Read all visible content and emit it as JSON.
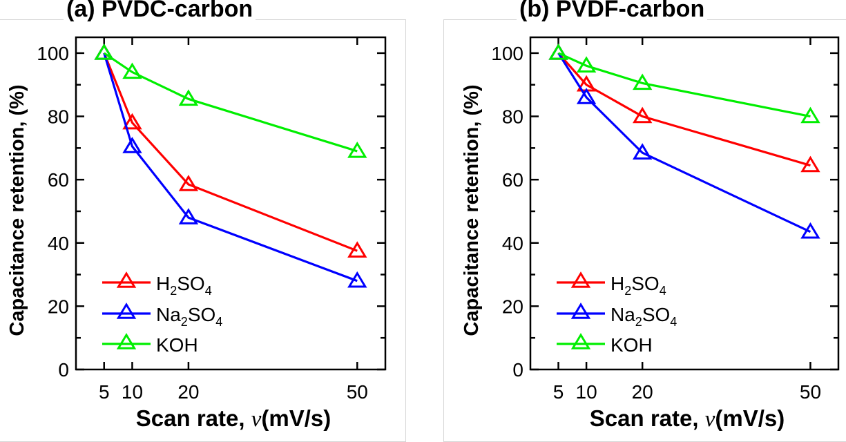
{
  "chart_data": [
    {
      "type": "line",
      "title": "(a) PVDC-carbon",
      "xlabel": "Scan rate, ν (mV/s)",
      "ylabel": "Capacitance retention, (%)",
      "x": [
        5,
        10,
        20,
        50
      ],
      "xticks": [
        5,
        10,
        20,
        50
      ],
      "yticks": [
        0,
        20,
        40,
        60,
        80,
        100
      ],
      "xlim": [
        0,
        55
      ],
      "ylim": [
        0,
        105
      ],
      "grid": false,
      "legend_position": "bottom-left",
      "marker": "open-triangle",
      "series": [
        {
          "name": "H2SO4",
          "label_main": "H",
          "label_sub": "2",
          "label_rest": "SO",
          "label_sub2": "4",
          "color": "#ff0000",
          "values": [
            100,
            78,
            58.5,
            37.5
          ]
        },
        {
          "name": "Na2SO4",
          "label_main": "Na",
          "label_sub": "2",
          "label_rest": "SO",
          "label_sub2": "4",
          "color": "#0000ff",
          "values": [
            100,
            70.5,
            48,
            28
          ]
        },
        {
          "name": "KOH",
          "label_main": "KOH",
          "label_sub": "",
          "label_rest": "",
          "label_sub2": "",
          "color": "#00ee00",
          "values": [
            100,
            94,
            85.5,
            69
          ]
        }
      ]
    },
    {
      "type": "line",
      "title": "(b) PVDF-carbon",
      "xlabel": "Scan rate, ν (mV/s)",
      "ylabel": "Capacitance retention, (%)",
      "x": [
        5,
        10,
        20,
        50
      ],
      "xticks": [
        5,
        10,
        20,
        50
      ],
      "yticks": [
        0,
        20,
        40,
        60,
        80,
        100
      ],
      "xlim": [
        0,
        55
      ],
      "ylim": [
        0,
        105
      ],
      "grid": false,
      "legend_position": "bottom-left",
      "marker": "open-triangle",
      "series": [
        {
          "name": "H2SO4",
          "label_main": "H",
          "label_sub": "2",
          "label_rest": "SO",
          "label_sub2": "4",
          "color": "#ff0000",
          "values": [
            100,
            90,
            80,
            64.5
          ]
        },
        {
          "name": "Na2SO4",
          "label_main": "Na",
          "label_sub": "2",
          "label_rest": "SO",
          "label_sub2": "4",
          "color": "#0000ff",
          "values": [
            100,
            86,
            68.5,
            43.5
          ]
        },
        {
          "name": "KOH",
          "label_main": "KOH",
          "label_sub": "",
          "label_rest": "",
          "label_sub2": "",
          "color": "#00ee00",
          "values": [
            100,
            96,
            90.5,
            80
          ]
        }
      ]
    }
  ],
  "labels": {
    "xlabel_main": "Scan rate, ",
    "xlabel_nu": "ν",
    "xlabel_unit": "(mV/s)"
  }
}
